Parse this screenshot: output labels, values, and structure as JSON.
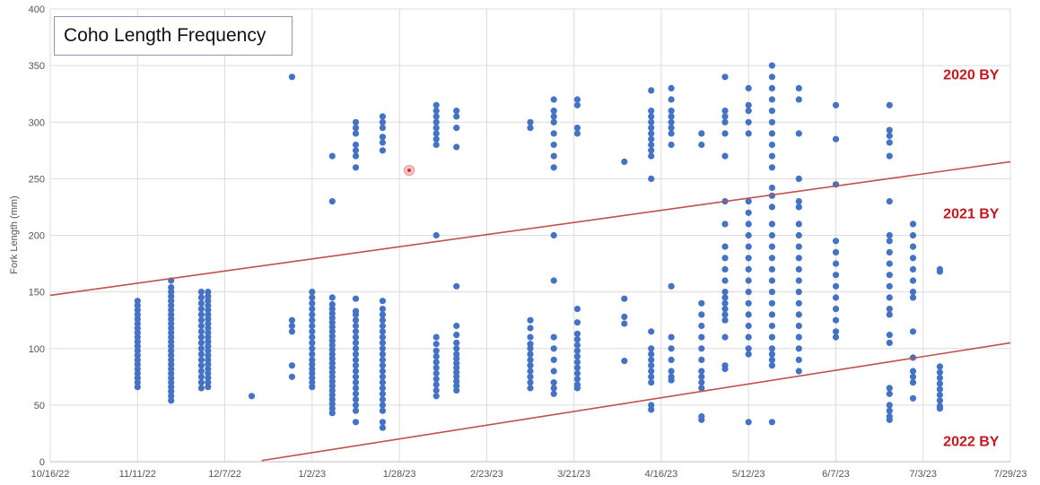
{
  "chart_data": {
    "type": "scatter",
    "title": "Coho Length Frequency",
    "xlabel": "",
    "ylabel": "Fork Length (mm)",
    "ylim": [
      0,
      400
    ],
    "yticks": [
      0,
      50,
      100,
      150,
      200,
      250,
      300,
      350,
      400
    ],
    "xlim": [
      "2022-10-16",
      "2023-07-29"
    ],
    "xtick_labels": [
      "10/16/22",
      "11/11/22",
      "12/7/22",
      "1/2/23",
      "1/28/23",
      "2/23/23",
      "3/21/23",
      "4/16/23",
      "5/12/23",
      "6/7/23",
      "7/3/23",
      "7/29/23"
    ],
    "grid": true,
    "series_color": "#4472c4",
    "line_color": "#c0504d",
    "lines": [
      {
        "label": "2020 BY / 2021 BY boundary",
        "x1": "2022-10-16",
        "y1": 147,
        "x2": "2023-07-29",
        "y2": 265
      },
      {
        "label": "2021 BY / 2022 BY boundary",
        "x1": "2022-12-18",
        "y1": 1,
        "x2": "2023-07-29",
        "y2": 105
      }
    ],
    "annotations": [
      {
        "text": "2020 BY",
        "x": "2023-07-09",
        "y": 338
      },
      {
        "text": "2021 BY",
        "x": "2023-07-09",
        "y": 215
      },
      {
        "text": "2022 BY",
        "x": "2023-07-09",
        "y": 14
      }
    ],
    "columns": [
      {
        "x": "2022-11-11",
        "values": [
          66,
          70,
          74,
          78,
          82,
          86,
          90,
          94,
          98,
          102,
          106,
          110,
          114,
          118,
          122,
          126,
          130,
          134,
          138,
          142
        ]
      },
      {
        "x": "2022-11-21",
        "values": [
          54,
          58,
          62,
          66,
          70,
          74,
          78,
          82,
          86,
          90,
          94,
          98,
          102,
          106,
          110,
          114,
          118,
          122,
          126,
          130,
          134,
          138,
          142,
          146,
          150,
          154,
          160
        ]
      },
      {
        "x": "2022-11-30",
        "values": [
          65,
          70,
          75,
          80,
          85,
          90,
          95,
          100,
          105,
          110,
          115,
          120,
          125,
          130,
          135,
          140,
          145,
          150
        ]
      },
      {
        "x": "2022-12-02",
        "values": [
          66,
          70,
          74,
          78,
          82,
          86,
          90,
          94,
          98,
          102,
          106,
          110,
          114,
          118,
          122,
          126,
          130,
          134,
          138,
          142,
          146,
          150
        ]
      },
      {
        "x": "2022-12-15",
        "values": [
          58
        ]
      },
      {
        "x": "2022-12-27",
        "values": [
          340,
          125,
          120,
          115,
          85,
          75
        ]
      },
      {
        "x": "2023-01-02",
        "values": [
          66,
          70,
          74,
          78,
          82,
          86,
          90,
          95,
          100,
          105,
          110,
          115,
          120,
          125,
          130,
          135,
          140,
          145,
          150
        ]
      },
      {
        "x": "2023-01-08",
        "values": [
          270,
          230,
          43,
          47,
          51,
          55,
          59,
          63,
          67,
          71,
          75,
          79,
          83,
          87,
          91,
          95,
          99,
          103,
          107,
          111,
          115,
          119,
          123,
          127,
          131,
          135,
          139,
          145
        ]
      },
      {
        "x": "2023-01-15",
        "values": [
          300,
          295,
          290,
          280,
          275,
          270,
          260,
          35,
          45,
          50,
          55,
          60,
          65,
          70,
          75,
          80,
          85,
          90,
          95,
          100,
          105,
          110,
          115,
          120,
          125,
          130,
          133,
          144
        ]
      },
      {
        "x": "2023-01-23",
        "values": [
          305,
          300,
          295,
          287,
          282,
          275,
          30,
          35,
          45,
          50,
          55,
          60,
          65,
          70,
          75,
          80,
          85,
          90,
          95,
          100,
          105,
          110,
          115,
          120,
          125,
          130,
          135,
          142
        ]
      },
      {
        "x": "2023-02-08",
        "values": [
          315,
          310,
          305,
          300,
          295,
          290,
          285,
          280,
          200,
          58,
          63,
          68,
          73,
          78,
          83,
          88,
          93,
          98,
          104,
          110
        ]
      },
      {
        "x": "2023-02-14",
        "values": [
          310,
          305,
          295,
          278,
          155,
          63,
          67,
          71,
          75,
          79,
          83,
          87,
          91,
          95,
          100,
          105,
          112,
          120
        ]
      },
      {
        "x": "2023-03-08",
        "values": [
          300,
          295,
          65,
          70,
          75,
          80,
          85,
          90,
          95,
          100,
          104,
          110,
          118,
          125
        ]
      },
      {
        "x": "2023-03-15",
        "values": [
          320,
          310,
          305,
          300,
          290,
          280,
          270,
          260,
          200,
          160,
          110,
          100,
          90,
          80,
          70,
          65,
          60
        ]
      },
      {
        "x": "2023-03-22",
        "values": [
          320,
          315,
          295,
          290,
          135,
          123,
          113,
          108,
          103,
          98,
          93,
          88,
          83,
          78,
          73,
          68,
          65
        ]
      },
      {
        "x": "2023-04-05",
        "values": [
          265,
          144,
          128,
          122,
          89
        ]
      },
      {
        "x": "2023-04-13",
        "values": [
          328,
          310,
          305,
          300,
          295,
          290,
          285,
          280,
          275,
          270,
          250,
          115,
          100,
          95,
          90,
          85,
          80,
          75,
          70,
          50,
          46
        ]
      },
      {
        "x": "2023-04-19",
        "values": [
          330,
          320,
          310,
          305,
          300,
          295,
          290,
          280,
          155,
          110,
          100,
          90,
          80,
          75,
          72
        ]
      },
      {
        "x": "2023-04-28",
        "values": [
          290,
          280,
          140,
          130,
          120,
          110,
          100,
          90,
          80,
          75,
          70,
          65,
          40,
          37
        ]
      },
      {
        "x": "2023-05-05",
        "values": [
          340,
          310,
          305,
          300,
          290,
          270,
          230,
          210,
          190,
          180,
          170,
          160,
          150,
          145,
          140,
          135,
          130,
          125,
          110,
          85,
          82
        ]
      },
      {
        "x": "2023-05-12",
        "values": [
          330,
          315,
          310,
          300,
          290,
          230,
          220,
          210,
          200,
          190,
          180,
          170,
          160,
          150,
          140,
          130,
          120,
          110,
          100,
          95,
          35
        ]
      },
      {
        "x": "2023-05-19",
        "values": [
          350,
          340,
          330,
          320,
          310,
          300,
          290,
          280,
          270,
          260,
          242,
          235,
          225,
          210,
          200,
          190,
          180,
          170,
          160,
          150,
          140,
          130,
          120,
          110,
          100,
          95,
          90,
          85,
          35
        ]
      },
      {
        "x": "2023-05-27",
        "values": [
          330,
          320,
          290,
          250,
          230,
          225,
          210,
          200,
          190,
          180,
          170,
          160,
          150,
          140,
          130,
          120,
          110,
          100,
          90,
          80
        ]
      },
      {
        "x": "2023-06-07",
        "values": [
          315,
          285,
          245,
          195,
          185,
          175,
          165,
          155,
          145,
          135,
          125,
          115,
          110
        ]
      },
      {
        "x": "2023-06-23",
        "values": [
          315,
          293,
          288,
          282,
          270,
          230,
          200,
          195,
          185,
          175,
          165,
          155,
          145,
          135,
          130,
          112,
          105,
          65,
          60,
          50,
          45,
          40,
          37
        ]
      },
      {
        "x": "2023-06-30",
        "values": [
          210,
          200,
          190,
          180,
          170,
          160,
          150,
          145,
          115,
          92,
          80,
          75,
          70,
          56
        ]
      },
      {
        "x": "2023-07-08",
        "values": [
          170,
          168,
          84,
          79,
          74,
          69,
          64,
          59,
          54,
          49,
          47
        ]
      }
    ]
  }
}
